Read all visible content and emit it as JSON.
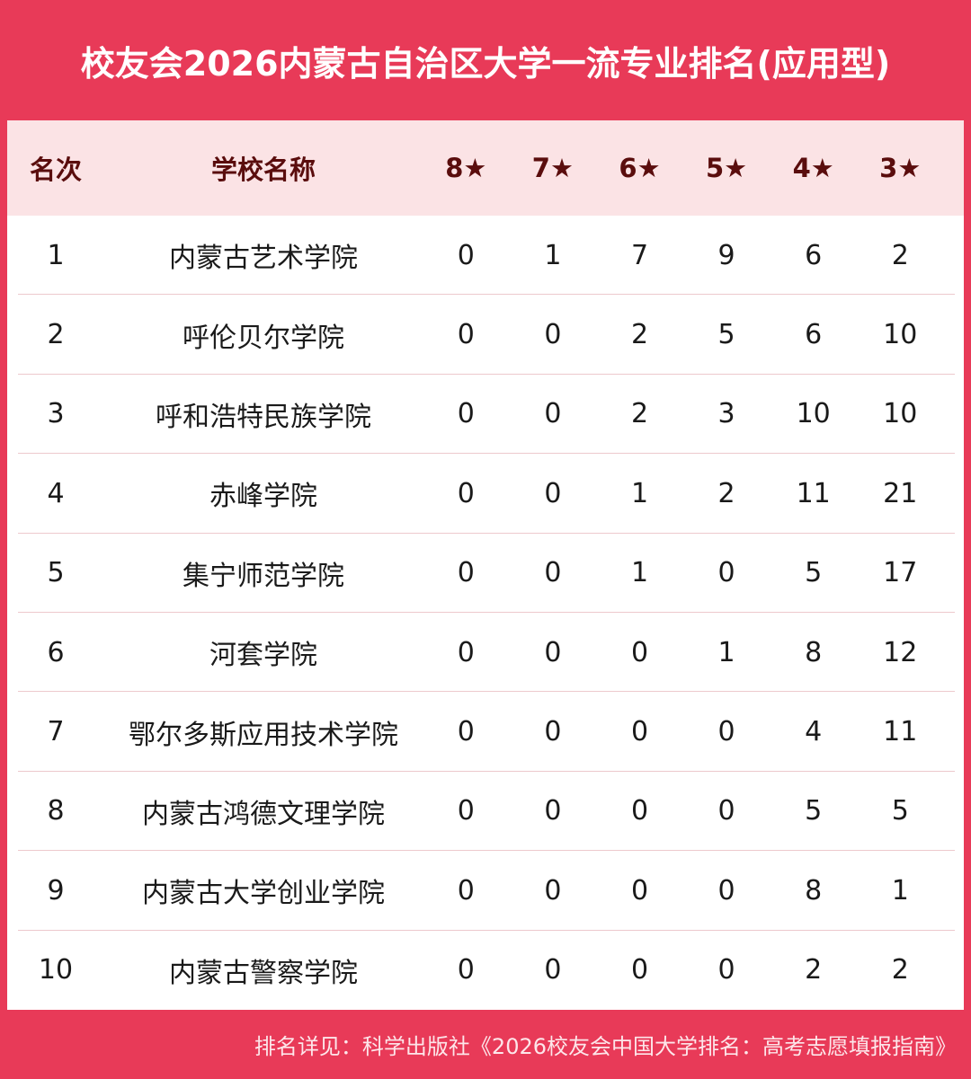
{
  "title": "校友会2026内蒙古自治区大学一流专业排名(应用型)",
  "columns": [
    "名次",
    "学校名称",
    "8★",
    "7★",
    "6★",
    "5★",
    "4★",
    "3★"
  ],
  "rows": [
    [
      "1",
      "内蒙古艺术学院",
      "0",
      "1",
      "7",
      "9",
      "6",
      "2"
    ],
    [
      "2",
      "呼伦贝尔学院",
      "0",
      "0",
      "2",
      "5",
      "6",
      "10"
    ],
    [
      "3",
      "呼和浩特民族学院",
      "0",
      "0",
      "2",
      "3",
      "10",
      "10"
    ],
    [
      "4",
      "赤峰学院",
      "0",
      "0",
      "1",
      "2",
      "11",
      "21"
    ],
    [
      "5",
      "集宁师范学院",
      "0",
      "0",
      "1",
      "0",
      "5",
      "17"
    ],
    [
      "6",
      "河套学院",
      "0",
      "0",
      "0",
      "1",
      "8",
      "12"
    ],
    [
      "7",
      "鄂尔多斯应用技术学院",
      "0",
      "0",
      "0",
      "0",
      "4",
      "11"
    ],
    [
      "8",
      "内蒙古鸿德文理学院",
      "0",
      "0",
      "0",
      "0",
      "5",
      "5"
    ],
    [
      "9",
      "内蒙古大学创业学院",
      "0",
      "0",
      "0",
      "0",
      "8",
      "1"
    ],
    [
      "10",
      "内蒙古警察学院",
      "0",
      "0",
      "0",
      "0",
      "2",
      "2"
    ]
  ],
  "footer": "排名详见：科学出版社《2026校友会中国大学排名：高考志愿填报指南》",
  "colors": {
    "brand": "#e83a58",
    "header_bg": "#fbe3e5",
    "header_text": "#5a0d0d"
  }
}
